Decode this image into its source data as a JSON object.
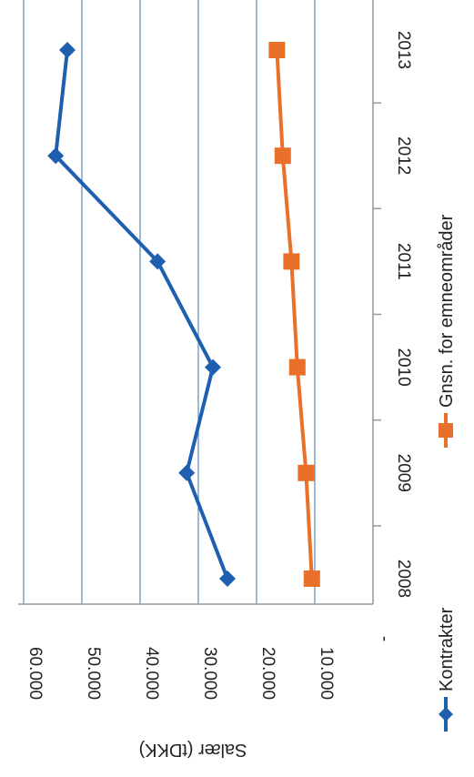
{
  "chart_data": {
    "type": "line",
    "orientation": "rotated-90-clockwise",
    "categories": [
      "2008",
      "2009",
      "2010",
      "2011",
      "2012",
      "2013"
    ],
    "ylabel": "Salær (tDKK)",
    "xlabel": "",
    "ylim": [
      0,
      60000
    ],
    "y_ticks": [
      "-",
      "10.000",
      "20.000",
      "30.000",
      "40.000",
      "50.000",
      "60.000"
    ],
    "grid": true,
    "legend_position": "bottom",
    "series": [
      {
        "name": "Kontrakter",
        "color": "#1f5fb0",
        "marker": "diamond",
        "values": [
          25000,
          32000,
          27500,
          37000,
          54500,
          52500
        ]
      },
      {
        "name": "Gnsn. for emneområder",
        "color": "#e8702a",
        "marker": "square",
        "values": [
          10500,
          11500,
          13000,
          14000,
          15500,
          16500
        ]
      }
    ]
  }
}
